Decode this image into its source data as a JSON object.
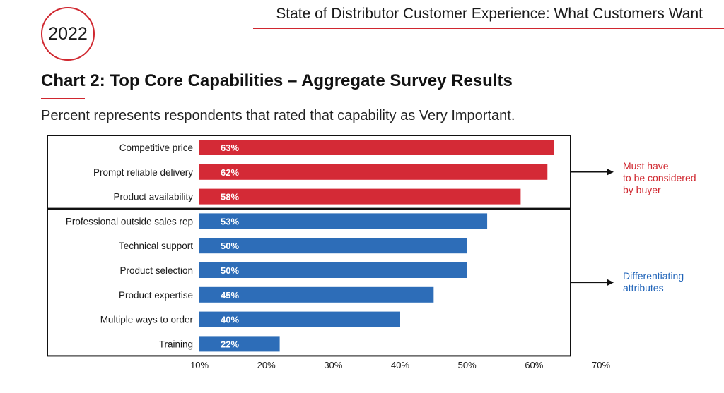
{
  "header": {
    "year": "2022",
    "report_title": "State of Distributor Customer Experience: What Customers Want"
  },
  "title": "Chart 2: Top Core Capabilities – Aggregate Survey Results",
  "subtitle": "Percent represents respondents that rated that capability as Very Important.",
  "colors": {
    "accent_red": "#d0272f",
    "bar_red": "#d42a36",
    "bar_blue": "#2d6db8"
  },
  "groups": [
    {
      "id": "must-have",
      "note": "Must have\nto be considered\nby buyer",
      "color": "#d42a36"
    },
    {
      "id": "differentiating",
      "note": "Differentiating\nattributes",
      "color": "#2d6db8"
    }
  ],
  "chart_data": {
    "type": "bar",
    "orientation": "horizontal",
    "categories": [
      "Competitive price",
      "Prompt reliable delivery",
      "Product availability",
      "Professional outside sales rep",
      "Technical support",
      "Product selection",
      "Product expertise",
      "Multiple ways to order",
      "Training"
    ],
    "values": [
      63,
      62,
      58,
      53,
      50,
      50,
      45,
      40,
      22
    ],
    "data_labels": [
      "63%",
      "62%",
      "58%",
      "53%",
      "50%",
      "50%",
      "45%",
      "40%",
      "22%"
    ],
    "group_index": [
      0,
      0,
      0,
      1,
      1,
      1,
      1,
      1,
      1
    ],
    "xlim": [
      10,
      70
    ],
    "xticks": [
      "10%",
      "20%",
      "30%",
      "40%",
      "50%",
      "60%",
      "70%"
    ],
    "xtick_values": [
      10,
      20,
      30,
      40,
      50,
      60,
      70
    ],
    "grid": false,
    "legend": "none"
  }
}
